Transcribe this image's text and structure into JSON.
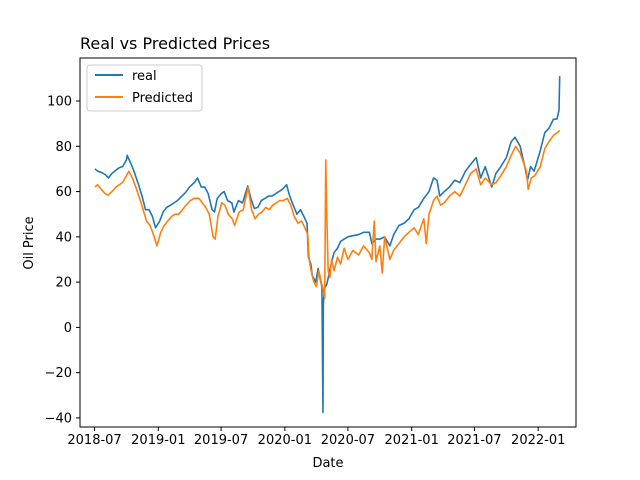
{
  "chart_data": {
    "type": "line",
    "title": "Real vs Predicted Prices",
    "xlabel": "Date",
    "ylabel": "Oil Price",
    "xlim": [
      "2018-05-20",
      "2022-04-20"
    ],
    "ylim": [
      -44,
      119
    ],
    "x_ticks": [
      "2018-07-01",
      "2019-01-01",
      "2019-07-01",
      "2020-01-01",
      "2020-07-01",
      "2021-01-01",
      "2021-07-01",
      "2022-01-01"
    ],
    "x_tick_labels": [
      "2018-07",
      "2019-01",
      "2019-07",
      "2020-01",
      "2020-07",
      "2021-01",
      "2021-07",
      "2022-01"
    ],
    "y_ticks": [
      -40,
      -20,
      0,
      20,
      40,
      60,
      80,
      100
    ],
    "y_tick_labels": [
      "−40",
      "−20",
      "0",
      "20",
      "40",
      "60",
      "80",
      "100"
    ],
    "grid": false,
    "legend_position": "top-left",
    "series": [
      {
        "name": "real",
        "color": "#1f77b4",
        "points": [
          [
            "2018-07-02",
            70
          ],
          [
            "2018-07-10",
            69
          ],
          [
            "2018-07-20",
            68.5
          ],
          [
            "2018-08-01",
            67.5
          ],
          [
            "2018-08-10",
            66
          ],
          [
            "2018-08-20",
            68
          ],
          [
            "2018-09-01",
            69.5
          ],
          [
            "2018-09-10",
            70.5
          ],
          [
            "2018-09-20",
            71
          ],
          [
            "2018-10-01",
            74
          ],
          [
            "2018-10-03",
            76
          ],
          [
            "2018-10-15",
            72
          ],
          [
            "2018-10-25",
            68
          ],
          [
            "2018-11-05",
            63
          ],
          [
            "2018-11-15",
            58
          ],
          [
            "2018-11-25",
            52
          ],
          [
            "2018-12-05",
            52
          ],
          [
            "2018-12-15",
            49
          ],
          [
            "2018-12-24",
            44
          ],
          [
            "2019-01-05",
            47
          ],
          [
            "2019-01-15",
            51
          ],
          [
            "2019-01-25",
            53
          ],
          [
            "2019-02-05",
            54
          ],
          [
            "2019-02-15",
            55
          ],
          [
            "2019-02-25",
            56
          ],
          [
            "2019-03-10",
            58
          ],
          [
            "2019-03-20",
            59.5
          ],
          [
            "2019-04-01",
            62
          ],
          [
            "2019-04-15",
            64
          ],
          [
            "2019-04-24",
            66
          ],
          [
            "2019-05-05",
            62
          ],
          [
            "2019-05-15",
            62
          ],
          [
            "2019-05-25",
            59
          ],
          [
            "2019-06-05",
            52
          ],
          [
            "2019-06-12",
            51
          ],
          [
            "2019-06-20",
            57
          ],
          [
            "2019-07-01",
            59
          ],
          [
            "2019-07-10",
            60
          ],
          [
            "2019-07-20",
            56
          ],
          [
            "2019-08-01",
            55
          ],
          [
            "2019-08-07",
            51
          ],
          [
            "2019-08-20",
            56
          ],
          [
            "2019-09-01",
            55
          ],
          [
            "2019-09-16",
            62.5
          ],
          [
            "2019-09-25",
            57
          ],
          [
            "2019-10-05",
            52.5
          ],
          [
            "2019-10-15",
            53
          ],
          [
            "2019-10-25",
            56
          ],
          [
            "2019-11-05",
            57
          ],
          [
            "2019-11-15",
            58
          ],
          [
            "2019-11-25",
            58
          ],
          [
            "2019-12-05",
            59
          ],
          [
            "2019-12-15",
            60
          ],
          [
            "2019-12-25",
            61
          ],
          [
            "2020-01-06",
            63
          ],
          [
            "2020-01-15",
            58
          ],
          [
            "2020-01-25",
            54
          ],
          [
            "2020-02-05",
            50
          ],
          [
            "2020-02-15",
            52
          ],
          [
            "2020-02-25",
            49
          ],
          [
            "2020-03-05",
            46
          ],
          [
            "2020-03-09",
            31
          ],
          [
            "2020-03-16",
            28
          ],
          [
            "2020-03-20",
            23
          ],
          [
            "2020-03-30",
            20
          ],
          [
            "2020-04-06",
            26
          ],
          [
            "2020-04-14",
            20
          ],
          [
            "2020-04-17",
            18
          ],
          [
            "2020-04-20",
            -37.6
          ],
          [
            "2020-04-21",
            10
          ],
          [
            "2020-04-24",
            17
          ],
          [
            "2020-05-01",
            19
          ],
          [
            "2020-05-08",
            24
          ],
          [
            "2020-05-15",
            29
          ],
          [
            "2020-05-22",
            33
          ],
          [
            "2020-06-01",
            35
          ],
          [
            "2020-06-10",
            38
          ],
          [
            "2020-06-20",
            39
          ],
          [
            "2020-07-01",
            40
          ],
          [
            "2020-07-15",
            40.5
          ],
          [
            "2020-08-01",
            41
          ],
          [
            "2020-08-15",
            42
          ],
          [
            "2020-09-01",
            42
          ],
          [
            "2020-09-08",
            37
          ],
          [
            "2020-09-20",
            39
          ],
          [
            "2020-10-01",
            39
          ],
          [
            "2020-10-15",
            40
          ],
          [
            "2020-10-30",
            36
          ],
          [
            "2020-11-10",
            41
          ],
          [
            "2020-11-25",
            45
          ],
          [
            "2020-12-10",
            46
          ],
          [
            "2020-12-24",
            48
          ],
          [
            "2021-01-08",
            52
          ],
          [
            "2021-01-20",
            53
          ],
          [
            "2021-02-05",
            57
          ],
          [
            "2021-02-20",
            60
          ],
          [
            "2021-03-05",
            66
          ],
          [
            "2021-03-15",
            65
          ],
          [
            "2021-03-23",
            58
          ],
          [
            "2021-04-05",
            60
          ],
          [
            "2021-04-20",
            62
          ],
          [
            "2021-05-05",
            65
          ],
          [
            "2021-05-20",
            64
          ],
          [
            "2021-06-05",
            69
          ],
          [
            "2021-06-20",
            72
          ],
          [
            "2021-07-06",
            75
          ],
          [
            "2021-07-19",
            66
          ],
          [
            "2021-08-01",
            71
          ],
          [
            "2021-08-20",
            62
          ],
          [
            "2021-09-01",
            68
          ],
          [
            "2021-09-15",
            71
          ],
          [
            "2021-10-01",
            75
          ],
          [
            "2021-10-15",
            82
          ],
          [
            "2021-10-26",
            84
          ],
          [
            "2021-11-10",
            80
          ],
          [
            "2021-11-26",
            69
          ],
          [
            "2021-12-01",
            65
          ],
          [
            "2021-12-10",
            71
          ],
          [
            "2021-12-20",
            69
          ],
          [
            "2022-01-05",
            77
          ],
          [
            "2022-01-20",
            86
          ],
          [
            "2022-02-01",
            88
          ],
          [
            "2022-02-14",
            92
          ],
          [
            "2022-02-24",
            92
          ],
          [
            "2022-03-02",
            96
          ],
          [
            "2022-03-04",
            111
          ]
        ]
      },
      {
        "name": "Predicted",
        "color": "#ff7f0e",
        "points": [
          [
            "2018-07-02",
            62
          ],
          [
            "2018-07-10",
            63
          ],
          [
            "2018-07-20",
            61
          ],
          [
            "2018-08-01",
            59
          ],
          [
            "2018-08-10",
            58.5
          ],
          [
            "2018-08-20",
            60
          ],
          [
            "2018-09-01",
            62
          ],
          [
            "2018-09-10",
            63
          ],
          [
            "2018-09-20",
            64
          ],
          [
            "2018-10-01",
            67
          ],
          [
            "2018-10-08",
            69
          ],
          [
            "2018-10-18",
            66
          ],
          [
            "2018-10-28",
            62
          ],
          [
            "2018-11-08",
            57
          ],
          [
            "2018-11-18",
            52
          ],
          [
            "2018-11-28",
            47
          ],
          [
            "2018-12-08",
            45
          ],
          [
            "2018-12-18",
            41
          ],
          [
            "2018-12-28",
            36
          ],
          [
            "2019-01-08",
            42
          ],
          [
            "2019-01-18",
            45
          ],
          [
            "2019-01-28",
            47
          ],
          [
            "2019-02-08",
            49
          ],
          [
            "2019-02-18",
            50
          ],
          [
            "2019-02-28",
            50
          ],
          [
            "2019-03-12",
            52
          ],
          [
            "2019-03-22",
            54
          ],
          [
            "2019-04-03",
            56
          ],
          [
            "2019-04-15",
            57
          ],
          [
            "2019-04-28",
            57
          ],
          [
            "2019-05-08",
            55
          ],
          [
            "2019-05-18",
            53
          ],
          [
            "2019-05-28",
            50
          ],
          [
            "2019-06-08",
            40
          ],
          [
            "2019-06-14",
            39
          ],
          [
            "2019-06-22",
            49
          ],
          [
            "2019-07-03",
            55
          ],
          [
            "2019-07-12",
            54
          ],
          [
            "2019-07-22",
            50
          ],
          [
            "2019-08-02",
            48
          ],
          [
            "2019-08-09",
            45
          ],
          [
            "2019-08-22",
            51
          ],
          [
            "2019-09-03",
            52
          ],
          [
            "2019-09-17",
            62
          ],
          [
            "2019-09-27",
            52
          ],
          [
            "2019-10-07",
            48
          ],
          [
            "2019-10-17",
            50
          ],
          [
            "2019-10-27",
            51
          ],
          [
            "2019-11-07",
            53
          ],
          [
            "2019-11-17",
            52
          ],
          [
            "2019-11-27",
            54
          ],
          [
            "2019-12-07",
            55
          ],
          [
            "2019-12-17",
            56
          ],
          [
            "2019-12-27",
            56
          ],
          [
            "2020-01-08",
            57
          ],
          [
            "2020-01-18",
            54
          ],
          [
            "2020-01-28",
            49
          ],
          [
            "2020-02-08",
            46
          ],
          [
            "2020-02-18",
            47
          ],
          [
            "2020-02-28",
            44
          ],
          [
            "2020-03-07",
            41
          ],
          [
            "2020-03-11",
            30
          ],
          [
            "2020-03-18",
            24
          ],
          [
            "2020-03-25",
            20
          ],
          [
            "2020-04-01",
            18
          ],
          [
            "2020-04-08",
            25
          ],
          [
            "2020-04-15",
            20
          ],
          [
            "2020-04-20",
            17
          ],
          [
            "2020-04-25",
            13
          ],
          [
            "2020-04-28",
            74
          ],
          [
            "2020-05-01",
            50
          ],
          [
            "2020-05-05",
            25
          ],
          [
            "2020-05-10",
            22
          ],
          [
            "2020-05-15",
            30
          ],
          [
            "2020-05-22",
            25
          ],
          [
            "2020-06-01",
            31
          ],
          [
            "2020-06-10",
            28
          ],
          [
            "2020-06-20",
            35
          ],
          [
            "2020-07-01",
            30
          ],
          [
            "2020-07-15",
            34
          ],
          [
            "2020-08-01",
            32
          ],
          [
            "2020-08-15",
            36
          ],
          [
            "2020-09-01",
            33
          ],
          [
            "2020-09-08",
            30
          ],
          [
            "2020-09-15",
            47
          ],
          [
            "2020-09-20",
            29
          ],
          [
            "2020-10-01",
            36
          ],
          [
            "2020-10-08",
            24
          ],
          [
            "2020-10-15",
            40
          ],
          [
            "2020-10-30",
            30
          ],
          [
            "2020-11-10",
            34
          ],
          [
            "2020-11-25",
            37
          ],
          [
            "2020-12-10",
            40
          ],
          [
            "2020-12-24",
            42
          ],
          [
            "2021-01-08",
            44
          ],
          [
            "2021-01-20",
            41
          ],
          [
            "2021-02-05",
            48
          ],
          [
            "2021-02-12",
            37
          ],
          [
            "2021-02-20",
            50
          ],
          [
            "2021-03-05",
            56
          ],
          [
            "2021-03-15",
            58
          ],
          [
            "2021-03-25",
            54
          ],
          [
            "2021-04-05",
            55
          ],
          [
            "2021-04-20",
            58
          ],
          [
            "2021-05-05",
            60
          ],
          [
            "2021-05-20",
            58
          ],
          [
            "2021-06-05",
            63
          ],
          [
            "2021-06-20",
            68
          ],
          [
            "2021-07-06",
            70
          ],
          [
            "2021-07-19",
            63
          ],
          [
            "2021-08-01",
            66
          ],
          [
            "2021-08-20",
            63
          ],
          [
            "2021-09-01",
            64
          ],
          [
            "2021-09-15",
            67
          ],
          [
            "2021-10-01",
            71
          ],
          [
            "2021-10-15",
            76
          ],
          [
            "2021-10-28",
            80
          ],
          [
            "2021-11-10",
            77
          ],
          [
            "2021-11-28",
            69
          ],
          [
            "2021-12-03",
            61
          ],
          [
            "2021-12-12",
            66
          ],
          [
            "2021-12-22",
            67
          ],
          [
            "2022-01-07",
            71
          ],
          [
            "2022-01-20",
            79
          ],
          [
            "2022-02-01",
            82
          ],
          [
            "2022-02-15",
            85
          ],
          [
            "2022-02-25",
            86
          ],
          [
            "2022-03-04",
            87
          ]
        ]
      }
    ]
  }
}
